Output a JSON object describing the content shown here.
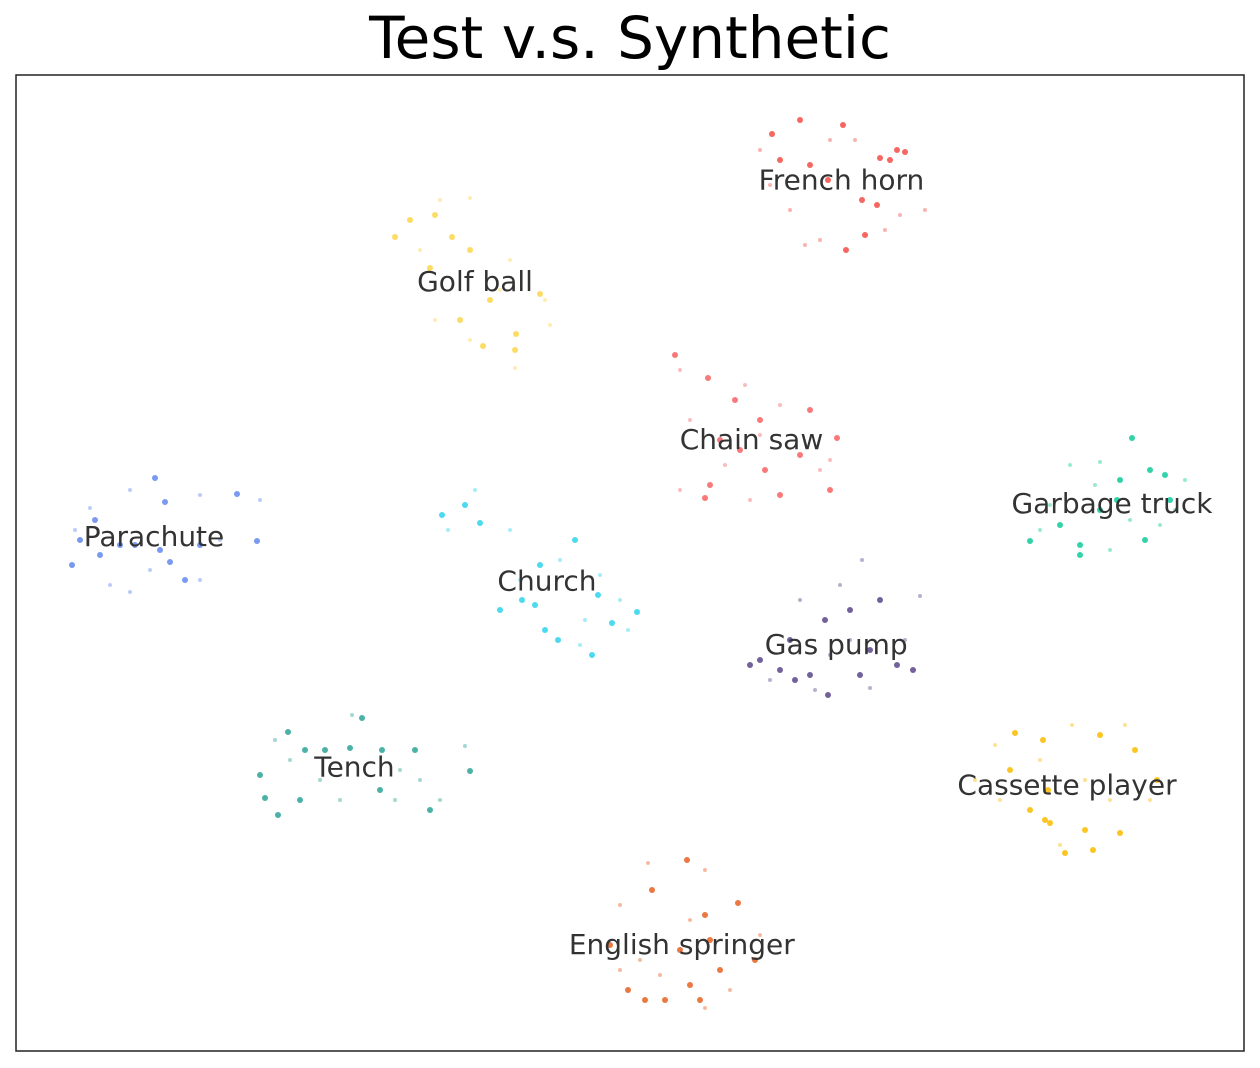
{
  "chart_data": {
    "type": "scatter",
    "title": "Test v.s. Synthetic",
    "xlim": [
      16,
      1244
    ],
    "ylim": [
      1051,
      75
    ],
    "series": [
      {
        "name": "French horn",
        "color": "#f4574f",
        "x": [
          772,
          800,
          843,
          880,
          897,
          905,
          862,
          810,
          846,
          865,
          877,
          780,
          828,
          890
        ],
        "y": [
          134,
          120,
          125,
          158,
          150,
          152,
          200,
          165,
          250,
          235,
          205,
          160,
          180,
          160
        ],
        "synthetic_x": [
          760,
          790,
          820,
          900,
          925,
          830,
          770,
          855,
          805,
          885
        ],
        "synthetic_y": [
          150,
          210,
          240,
          215,
          210,
          140,
          185,
          140,
          245,
          230
        ]
      },
      {
        "name": "Golf ball",
        "color": "#fdd855",
        "x": [
          410,
          435,
          452,
          470,
          490,
          483,
          515,
          540,
          516,
          430,
          460,
          395
        ],
        "y": [
          220,
          215,
          237,
          250,
          300,
          346,
          350,
          294,
          334,
          268,
          320,
          237
        ],
        "synthetic_x": [
          440,
          470,
          510,
          550,
          515,
          435,
          500,
          420,
          470,
          545
        ],
        "synthetic_y": [
          200,
          198,
          260,
          325,
          368,
          320,
          290,
          250,
          340,
          300
        ]
      },
      {
        "name": "Chain saw",
        "color": "#f86a6c",
        "x": [
          675,
          708,
          735,
          760,
          740,
          765,
          800,
          830,
          780,
          710,
          720,
          837,
          705,
          810
        ],
        "y": [
          355,
          378,
          400,
          420,
          450,
          470,
          455,
          490,
          495,
          485,
          440,
          438,
          498,
          410
        ],
        "synthetic_x": [
          680,
          745,
          780,
          690,
          725,
          760,
          820,
          680,
          750,
          830
        ],
        "synthetic_y": [
          370,
          385,
          405,
          420,
          465,
          435,
          470,
          490,
          500,
          460
        ]
      },
      {
        "name": "Garbage truck",
        "color": "#1ccea0",
        "x": [
          1132,
          1150,
          1165,
          1120,
          1100,
          1060,
          1080,
          1030,
          1145,
          1117,
          1080,
          1170
        ],
        "y": [
          438,
          470,
          475,
          480,
          510,
          525,
          545,
          541,
          540,
          500,
          555,
          500
        ],
        "synthetic_x": [
          1070,
          1100,
          1185,
          1175,
          1050,
          1110,
          1040,
          1130,
          1095,
          1160
        ],
        "synthetic_y": [
          465,
          462,
          480,
          510,
          505,
          550,
          530,
          520,
          485,
          525
        ]
      },
      {
        "name": "Parachute",
        "color": "#6b8ff0",
        "x": [
          155,
          165,
          237,
          95,
          120,
          135,
          100,
          160,
          170,
          185,
          72,
          200,
          257,
          80
        ],
        "y": [
          478,
          502,
          494,
          520,
          545,
          545,
          555,
          550,
          562,
          580,
          565,
          545,
          541,
          540
        ],
        "synthetic_x": [
          90,
          130,
          200,
          260,
          110,
          130,
          200,
          220,
          75,
          150
        ],
        "synthetic_y": [
          508,
          490,
          495,
          500,
          585,
          592,
          580,
          540,
          530,
          570
        ]
      },
      {
        "name": "Church",
        "color": "#39d6f0",
        "x": [
          442,
          465,
          480,
          575,
          540,
          522,
          535,
          500,
          545,
          558,
          592,
          637,
          612,
          598
        ],
        "y": [
          515,
          505,
          523,
          540,
          565,
          600,
          605,
          610,
          630,
          640,
          655,
          612,
          623,
          595
        ],
        "synthetic_x": [
          475,
          448,
          510,
          560,
          600,
          585,
          628,
          520,
          580,
          620
        ],
        "synthetic_y": [
          490,
          530,
          530,
          560,
          575,
          620,
          630,
          580,
          645,
          600
        ]
      },
      {
        "name": "Gas pump",
        "color": "#645091",
        "x": [
          750,
          780,
          795,
          810,
          828,
          860,
          880,
          897,
          913,
          825,
          850,
          870,
          790,
          760
        ],
        "y": [
          665,
          670,
          680,
          675,
          695,
          675,
          600,
          665,
          670,
          620,
          610,
          650,
          640,
          660
        ],
        "synthetic_x": [
          862,
          840,
          920,
          870,
          830,
          800,
          905,
          770,
          850,
          815
        ],
        "synthetic_y": [
          560,
          585,
          596,
          688,
          655,
          600,
          640,
          680,
          640,
          690
        ]
      },
      {
        "name": "Tench",
        "color": "#38a89d",
        "x": [
          288,
          305,
          325,
          350,
          382,
          415,
          380,
          430,
          470,
          278,
          265,
          260,
          362,
          300
        ],
        "y": [
          732,
          750,
          750,
          748,
          750,
          750,
          790,
          810,
          771,
          815,
          798,
          775,
          718,
          800
        ],
        "synthetic_x": [
          352,
          440,
          465,
          400,
          320,
          275,
          420,
          340,
          290,
          395
        ],
        "synthetic_y": [
          715,
          800,
          746,
          770,
          780,
          740,
          780,
          800,
          760,
          800
        ]
      },
      {
        "name": "Cassette player",
        "color": "#fbbf0a",
        "x": [
          1015,
          1043,
          1100,
          1135,
          1157,
          1048,
          1045,
          1050,
          1065,
          1093,
          1120,
          1085,
          1030,
          1010
        ],
        "y": [
          733,
          740,
          735,
          750,
          780,
          790,
          820,
          823,
          853,
          850,
          833,
          830,
          810,
          770
        ],
        "synthetic_x": [
          1072,
          1125,
          975,
          1000,
          1110,
          1040,
          1150,
          1060,
          1085,
          995
        ],
        "synthetic_y": [
          725,
          725,
          780,
          800,
          800,
          760,
          800,
          845,
          780,
          745
        ]
      },
      {
        "name": "English springer",
        "color": "#e8692f",
        "x": [
          652,
          687,
          705,
          738,
          755,
          720,
          690,
          700,
          665,
          645,
          628,
          610,
          680,
          710
        ],
        "y": [
          890,
          860,
          915,
          903,
          960,
          970,
          985,
          1000,
          1000,
          1000,
          990,
          945,
          950,
          940
        ],
        "synthetic_x": [
          648,
          705,
          620,
          760,
          640,
          730,
          705,
          660,
          690,
          620
        ],
        "synthetic_y": [
          863,
          870,
          905,
          935,
          960,
          990,
          1008,
          975,
          920,
          970
        ]
      }
    ]
  }
}
